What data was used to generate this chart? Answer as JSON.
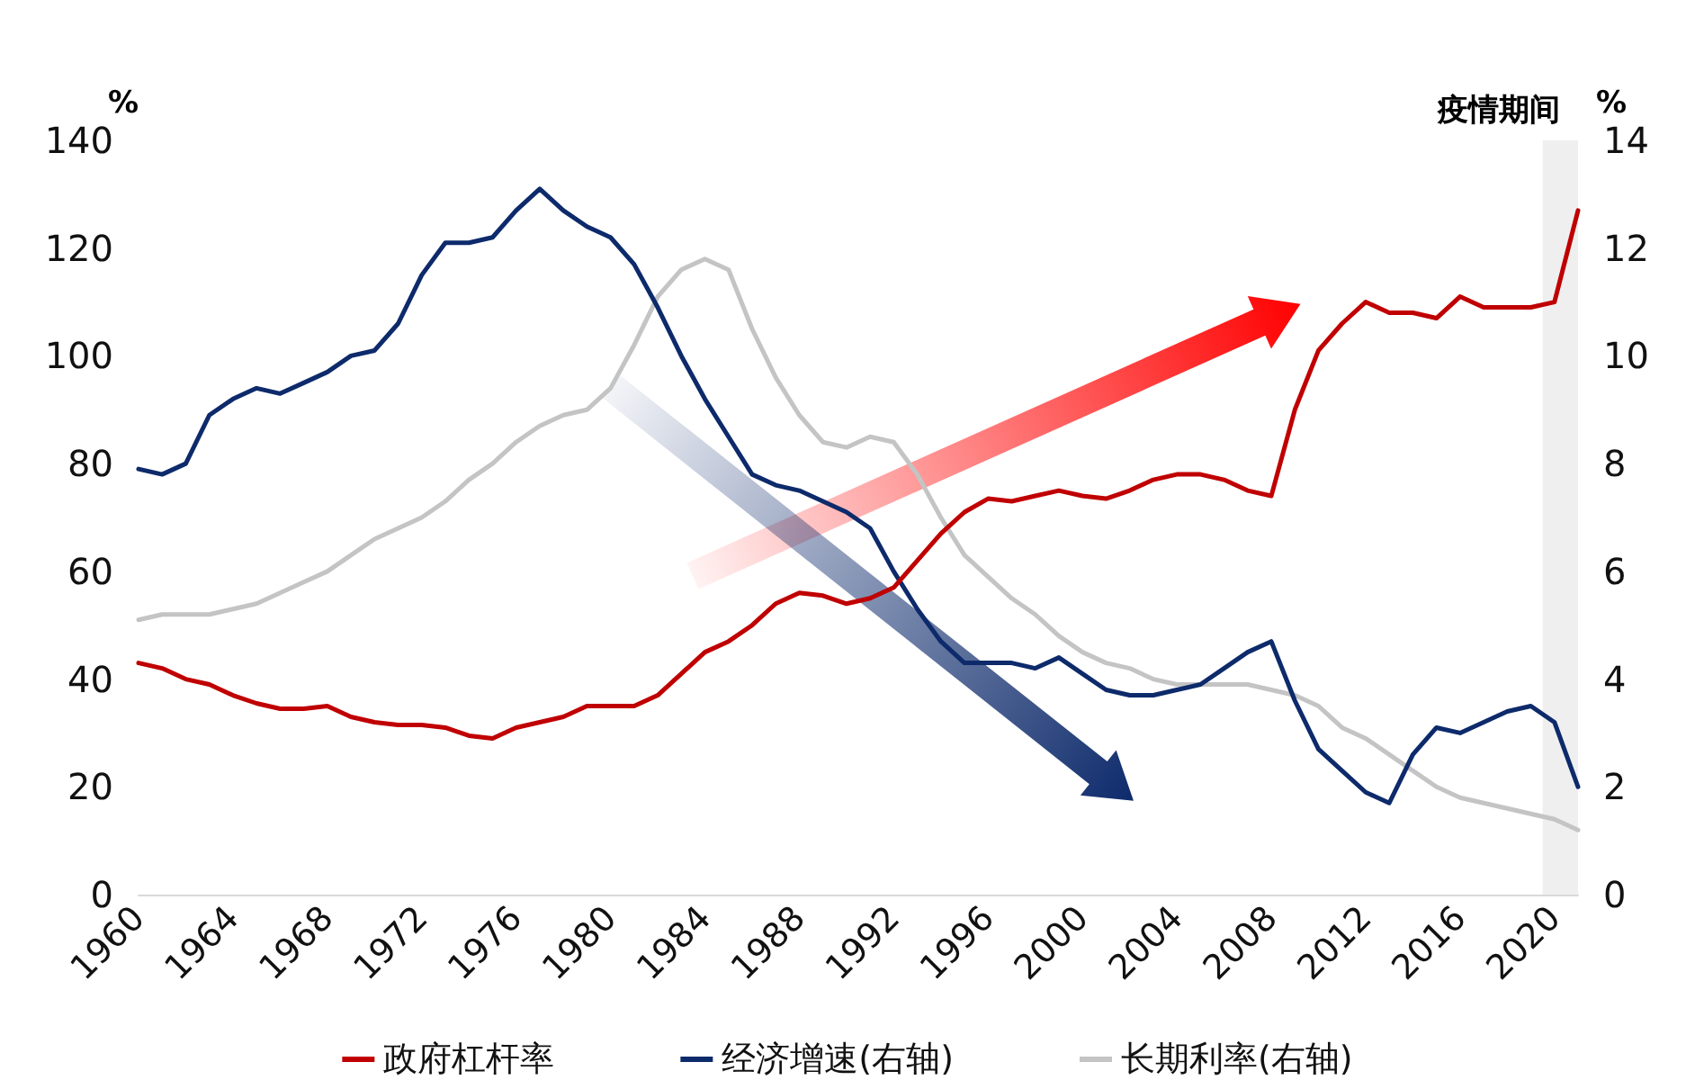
{
  "chart_data": {
    "type": "line",
    "ylabel": "%",
    "y2label": "%",
    "x": [
      1960,
      1961,
      1962,
      1963,
      1964,
      1965,
      1966,
      1967,
      1968,
      1969,
      1970,
      1971,
      1972,
      1973,
      1974,
      1975,
      1976,
      1977,
      1978,
      1979,
      1980,
      1981,
      1982,
      1983,
      1984,
      1985,
      1986,
      1987,
      1988,
      1989,
      1990,
      1991,
      1992,
      1993,
      1994,
      1995,
      1996,
      1997,
      1998,
      1999,
      2000,
      2001,
      2002,
      2003,
      2004,
      2005,
      2006,
      2007,
      2008,
      2009,
      2010,
      2011,
      2012,
      2013,
      2014,
      2015,
      2016,
      2017,
      2018,
      2019,
      2020,
      2021
    ],
    "series": [
      {
        "name": "政府杠杆率",
        "color": "#c00000",
        "values": [
          43,
          42,
          40,
          39,
          37,
          35.5,
          34.5,
          34.5,
          35,
          33,
          32,
          31.5,
          31.5,
          31,
          29.5,
          29,
          31,
          32,
          33,
          35,
          35,
          35,
          37,
          41,
          45,
          47,
          50,
          54,
          56,
          55.5,
          54,
          55,
          57,
          62,
          67,
          71,
          73.5,
          73,
          74,
          75,
          74,
          73.5,
          75,
          77,
          78,
          78,
          77,
          75,
          74,
          90,
          101,
          106,
          110,
          108,
          108,
          107,
          111,
          109,
          109,
          109,
          110,
          127
        ]
      },
      {
        "name": "经济增速(右轴)",
        "color": "#0d2a6b",
        "axis": "y2",
        "values": [
          7.9,
          7.8,
          8.0,
          8.9,
          9.2,
          9.4,
          9.3,
          9.5,
          9.7,
          10.0,
          10.1,
          10.6,
          11.5,
          12.1,
          12.1,
          12.2,
          12.7,
          13.1,
          12.7,
          12.4,
          12.2,
          11.7,
          10.9,
          10.0,
          9.2,
          8.5,
          7.8,
          7.6,
          7.5,
          7.3,
          7.1,
          6.8,
          6.0,
          5.3,
          4.7,
          4.3,
          4.3,
          4.3,
          4.2,
          4.4,
          4.1,
          3.8,
          3.7,
          3.7,
          3.8,
          3.9,
          4.2,
          4.5,
          4.7,
          3.6,
          2.7,
          2.3,
          1.9,
          1.7,
          2.6,
          3.1,
          3.0,
          3.2,
          3.4,
          3.5,
          3.2,
          2.0
        ]
      },
      {
        "name": "长期利率(右轴)",
        "color": "#c4c4c4",
        "axis": "y2",
        "values": [
          5.1,
          5.2,
          5.2,
          5.2,
          5.3,
          5.4,
          5.6,
          5.8,
          6.0,
          6.3,
          6.6,
          6.8,
          7.0,
          7.3,
          7.7,
          8.0,
          8.4,
          8.7,
          8.9,
          9.0,
          9.4,
          10.2,
          11.1,
          11.6,
          11.8,
          11.6,
          10.5,
          9.6,
          8.9,
          8.4,
          8.3,
          8.5,
          8.4,
          7.8,
          7.0,
          6.3,
          5.9,
          5.5,
          5.2,
          4.8,
          4.5,
          4.3,
          4.2,
          4.0,
          3.9,
          3.9,
          3.9,
          3.9,
          3.8,
          3.7,
          3.5,
          3.1,
          2.9,
          2.6,
          2.3,
          2.0,
          1.8,
          1.7,
          1.6,
          1.5,
          1.4,
          1.2
        ]
      }
    ],
    "xlim": [
      1960,
      2021
    ],
    "xticks": [
      1960,
      1964,
      1968,
      1972,
      1976,
      1980,
      1984,
      1988,
      1992,
      1996,
      2000,
      2004,
      2008,
      2012,
      2016,
      2020
    ],
    "ylim": [
      0,
      140
    ],
    "yticks": [
      0,
      20,
      40,
      60,
      80,
      100,
      120,
      140
    ],
    "y2lim": [
      0,
      14
    ],
    "y2ticks": [
      0,
      2,
      4,
      6,
      8,
      10,
      12,
      14
    ],
    "bands": [
      {
        "axis": "x",
        "from": 2019.5,
        "to": 2021,
        "label": "疫情期间",
        "color": "#efefef"
      }
    ],
    "grid": false,
    "legend": "bottom",
    "marker": "none",
    "line_style": "solid"
  }
}
